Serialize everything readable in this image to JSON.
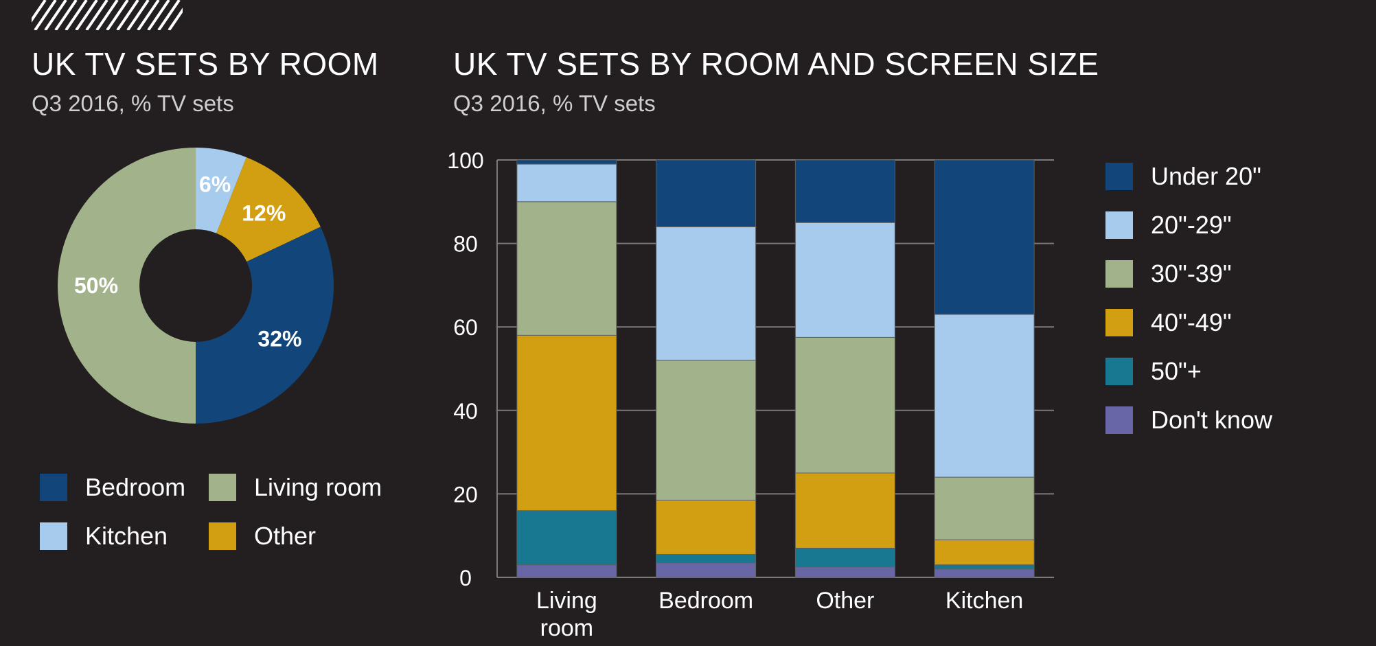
{
  "left_chart": {
    "title": "UK TV SETS BY ROOM",
    "subtitle": "Q3 2016, % TV sets"
  },
  "right_chart": {
    "title": "UK TV SETS BY ROOM AND SCREEN SIZE",
    "subtitle": "Q3 2016, % TV sets"
  },
  "colors": {
    "background": "#231f20",
    "bedroom": "#12467b",
    "kitchen": "#a6cbec",
    "living_room": "#a2b38b",
    "other": "#d39f12",
    "under20": "#12467b",
    "s20_29": "#a6cbec",
    "s30_39": "#a2b38b",
    "s40_49": "#d39f12",
    "s50plus": "#187891",
    "dont_know": "#6866a6",
    "grid": "#7a7a7a"
  },
  "chart_data": [
    {
      "type": "pie",
      "title": "UK TV SETS BY ROOM",
      "subtitle": "Q3 2016, % TV sets",
      "slices": [
        {
          "label": "Kitchen",
          "value": 6,
          "display": "6%",
          "color": "#a6cbec"
        },
        {
          "label": "Other",
          "value": 12,
          "display": "12%",
          "color": "#d39f12"
        },
        {
          "label": "Bedroom",
          "value": 32,
          "display": "32%",
          "color": "#12467b"
        },
        {
          "label": "Living room",
          "value": 50,
          "display": "50%",
          "color": "#a2b38b"
        }
      ],
      "legend": [
        {
          "label": "Bedroom",
          "color": "#12467b"
        },
        {
          "label": "Living room",
          "color": "#a2b38b"
        },
        {
          "label": "Kitchen",
          "color": "#a6cbec"
        },
        {
          "label": "Other",
          "color": "#d39f12"
        }
      ]
    },
    {
      "type": "bar",
      "stacked": true,
      "title": "UK TV SETS BY ROOM AND SCREEN SIZE",
      "subtitle": "Q3 2016, % TV sets",
      "categories": [
        [
          "Living",
          "room"
        ],
        [
          "Bedroom"
        ],
        [
          "Other"
        ],
        [
          "Kitchen"
        ]
      ],
      "ylim": [
        0,
        100
      ],
      "yticks": [
        0,
        20,
        40,
        60,
        80,
        100
      ],
      "grid": true,
      "series": [
        {
          "name": "Don't know",
          "color": "#6866a6",
          "values": [
            3,
            3.5,
            2.5,
            2
          ]
        },
        {
          "name": "50\"+",
          "color": "#187891",
          "values": [
            13,
            2,
            4.5,
            1
          ]
        },
        {
          "name": "40\"-49\"",
          "color": "#d39f12",
          "values": [
            42,
            13,
            18,
            6
          ]
        },
        {
          "name": "30\"-39\"",
          "color": "#a2b38b",
          "values": [
            32,
            33.5,
            32.5,
            15
          ]
        },
        {
          "name": "20\"-29\"",
          "color": "#a6cbec",
          "values": [
            9,
            32,
            27.5,
            39
          ]
        },
        {
          "name": "Under 20\"",
          "color": "#12467b",
          "values": [
            1,
            16,
            15,
            37
          ]
        }
      ],
      "legend": [
        {
          "label": "Under 20\"",
          "color": "#12467b"
        },
        {
          "label": "20\"-29\"",
          "color": "#a6cbec"
        },
        {
          "label": "30\"-39\"",
          "color": "#a2b38b"
        },
        {
          "label": "40\"-49\"",
          "color": "#d39f12"
        },
        {
          "label": "50\"+",
          "color": "#187891"
        },
        {
          "label": "Don't know",
          "color": "#6866a6"
        }
      ]
    }
  ]
}
